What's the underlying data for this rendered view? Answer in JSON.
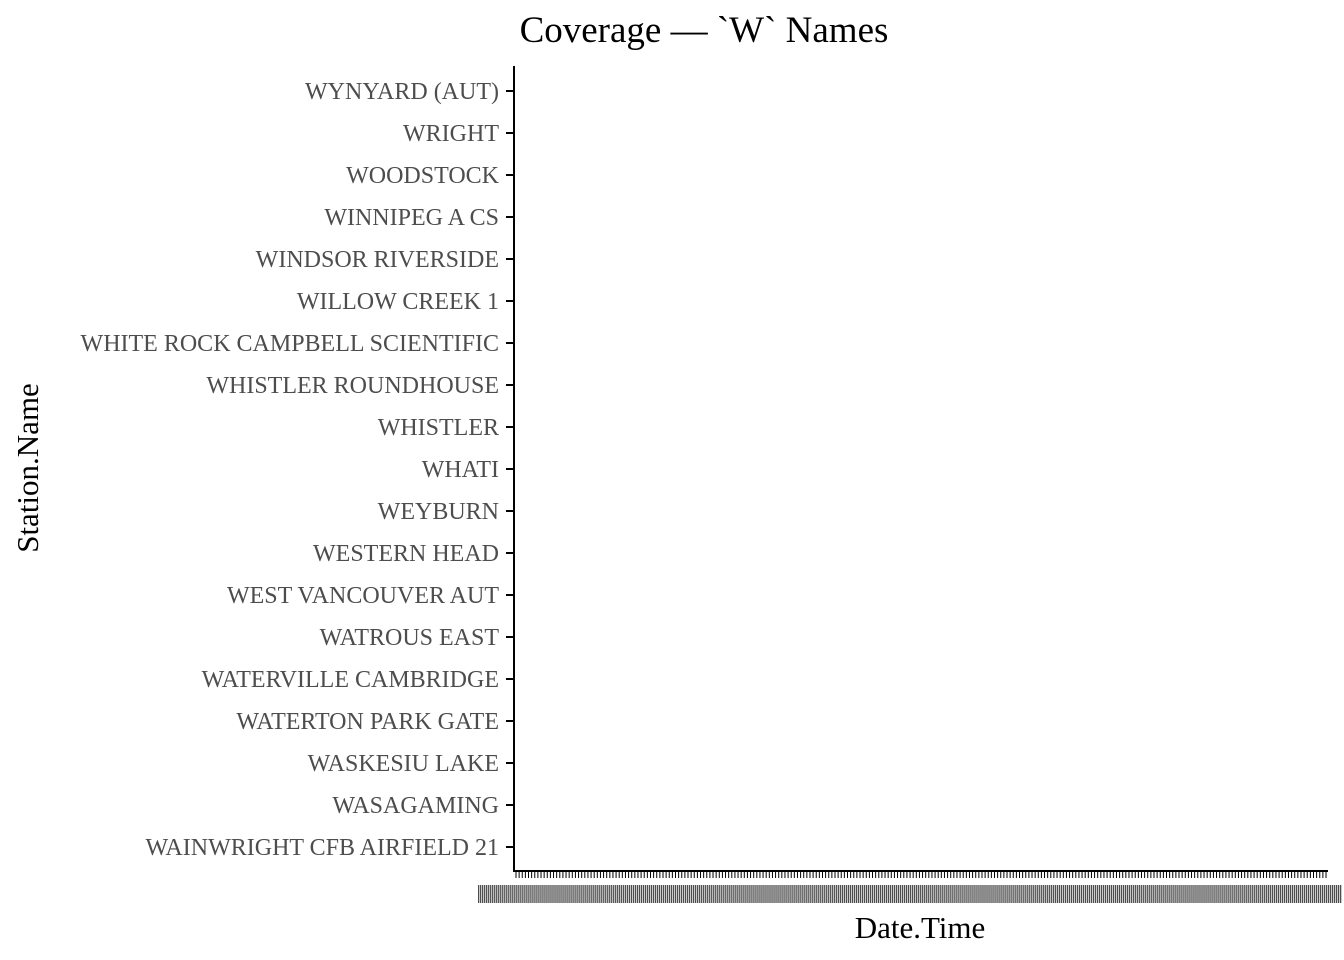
{
  "chart_data": {
    "type": "scatter",
    "title": "Coverage — `W` Names",
    "xlabel": "Date.Time",
    "ylabel": "Station.Name",
    "categories": [
      "WAINWRIGHT CFB AIRFIELD 21",
      "WASAGAMING",
      "WASKESIU LAKE",
      "WATERTON PARK GATE",
      "WATERVILLE CAMBRIDGE",
      "WATROUS EAST",
      "WEST VANCOUVER AUT",
      "WESTERN HEAD",
      "WEYBURN",
      "WHATI",
      "WHISTLER",
      "WHISTLER ROUNDHOUSE",
      "WHITE ROCK CAMPBELL SCIENTIFIC",
      "WILLOW CREEK 1",
      "WINDSOR RIVERSIDE",
      "WINNIPEG A CS",
      "WOODSTOCK",
      "WRIGHT",
      "WYNYARD (AUT)"
    ],
    "series": [],
    "grid": false,
    "legend": "none",
    "x_tick_labels_overlapping": true,
    "colors": {
      "axis": "#000000",
      "tick_label": "#4d4d4d",
      "background": "#ffffff"
    }
  }
}
